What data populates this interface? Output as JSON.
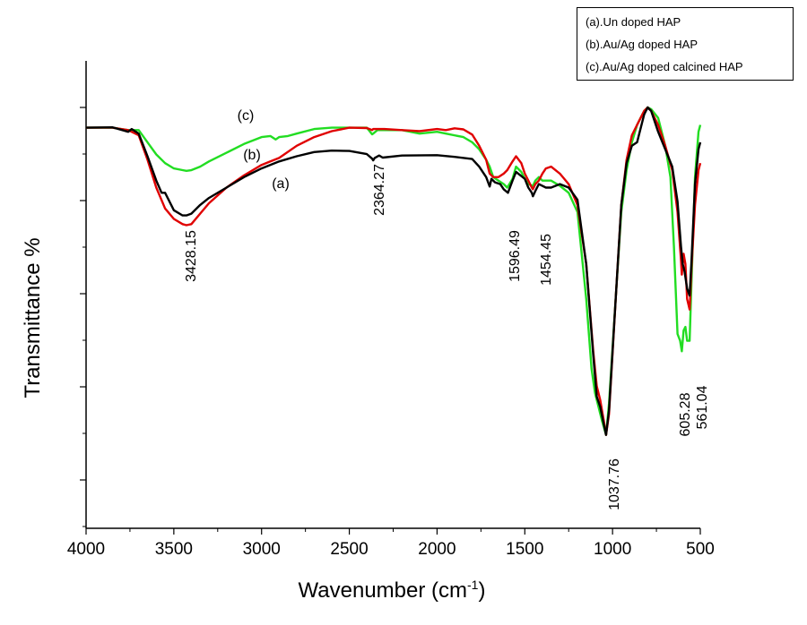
{
  "chart_data": {
    "type": "line",
    "xlabel": "Wavenumber (cm",
    "xlabel_sup": "-1",
    "xlabel_suffix": ")",
    "ylabel": "Transmittance %",
    "xlim": [
      4000,
      500
    ],
    "x_reversed": true,
    "ylim": [
      0,
      1
    ],
    "x_ticks": [
      4000,
      3500,
      3000,
      2500,
      2000,
      1500,
      1000,
      500
    ],
    "x_tick_labels": [
      "4000",
      "3500",
      "3000",
      "2500",
      "2000",
      "1500",
      "1000",
      "500"
    ],
    "y_tick_labels_shown": false,
    "grid": false,
    "legend_placement": "top-right",
    "legend": [
      "(a).Un doped HAP",
      "(b).Au/Ag doped HAP",
      "(c).Au/Ag doped calcined HAP"
    ],
    "series": [
      {
        "name": "(a)",
        "color": "#000000",
        "points": [
          [
            4000,
            0.942
          ],
          [
            3850,
            0.943
          ],
          [
            3760,
            0.93
          ],
          [
            3740,
            0.938
          ],
          [
            3700,
            0.925
          ],
          [
            3650,
            0.86
          ],
          [
            3600,
            0.79
          ],
          [
            3570,
            0.755
          ],
          [
            3550,
            0.755
          ],
          [
            3500,
            0.705
          ],
          [
            3450,
            0.69
          ],
          [
            3428,
            0.69
          ],
          [
            3400,
            0.695
          ],
          [
            3350,
            0.72
          ],
          [
            3300,
            0.74
          ],
          [
            3200,
            0.77
          ],
          [
            3100,
            0.8
          ],
          [
            3000,
            0.825
          ],
          [
            2900,
            0.845
          ],
          [
            2800,
            0.86
          ],
          [
            2700,
            0.872
          ],
          [
            2600,
            0.876
          ],
          [
            2500,
            0.875
          ],
          [
            2400,
            0.866
          ],
          [
            2370,
            0.853
          ],
          [
            2364,
            0.848
          ],
          [
            2355,
            0.855
          ],
          [
            2330,
            0.862
          ],
          [
            2310,
            0.856
          ],
          [
            2200,
            0.862
          ],
          [
            2000,
            0.863
          ],
          [
            1900,
            0.858
          ],
          [
            1800,
            0.852
          ],
          [
            1760,
            0.83
          ],
          [
            1720,
            0.8
          ],
          [
            1700,
            0.773
          ],
          [
            1690,
            0.795
          ],
          [
            1670,
            0.785
          ],
          [
            1640,
            0.78
          ],
          [
            1620,
            0.765
          ],
          [
            1596,
            0.755
          ],
          [
            1570,
            0.79
          ],
          [
            1550,
            0.815
          ],
          [
            1500,
            0.795
          ],
          [
            1480,
            0.77
          ],
          [
            1460,
            0.755
          ],
          [
            1454,
            0.745
          ],
          [
            1440,
            0.76
          ],
          [
            1420,
            0.78
          ],
          [
            1380,
            0.77
          ],
          [
            1350,
            0.77
          ],
          [
            1300,
            0.78
          ],
          [
            1250,
            0.77
          ],
          [
            1200,
            0.735
          ],
          [
            1150,
            0.55
          ],
          [
            1110,
            0.29
          ],
          [
            1090,
            0.17
          ],
          [
            1070,
            0.14
          ],
          [
            1050,
            0.09
          ],
          [
            1037,
            0.06
          ],
          [
            1020,
            0.13
          ],
          [
            980,
            0.47
          ],
          [
            950,
            0.72
          ],
          [
            920,
            0.84
          ],
          [
            890,
            0.89
          ],
          [
            860,
            0.9
          ],
          [
            820,
            0.98
          ],
          [
            800,
            1.0
          ],
          [
            780,
            0.99
          ],
          [
            740,
            0.93
          ],
          [
            700,
            0.88
          ],
          [
            660,
            0.83
          ],
          [
            630,
            0.73
          ],
          [
            610,
            0.6
          ],
          [
            600,
            0.55
          ],
          [
            590,
            0.53
          ],
          [
            575,
            0.48
          ],
          [
            561,
            0.46
          ],
          [
            550,
            0.56
          ],
          [
            530,
            0.78
          ],
          [
            510,
            0.88
          ],
          [
            500,
            0.9
          ]
        ]
      },
      {
        "name": "(b)",
        "color": "#e00000",
        "points": [
          [
            4000,
            0.942
          ],
          [
            3850,
            0.942
          ],
          [
            3760,
            0.935
          ],
          [
            3700,
            0.92
          ],
          [
            3650,
            0.85
          ],
          [
            3600,
            0.77
          ],
          [
            3550,
            0.71
          ],
          [
            3500,
            0.68
          ],
          [
            3450,
            0.665
          ],
          [
            3428,
            0.662
          ],
          [
            3400,
            0.665
          ],
          [
            3350,
            0.695
          ],
          [
            3300,
            0.725
          ],
          [
            3200,
            0.77
          ],
          [
            3100,
            0.805
          ],
          [
            3000,
            0.835
          ],
          [
            2950,
            0.845
          ],
          [
            2900,
            0.855
          ],
          [
            2800,
            0.89
          ],
          [
            2700,
            0.915
          ],
          [
            2600,
            0.932
          ],
          [
            2500,
            0.942
          ],
          [
            2400,
            0.941
          ],
          [
            2370,
            0.935
          ],
          [
            2364,
            0.938
          ],
          [
            2300,
            0.938
          ],
          [
            2200,
            0.935
          ],
          [
            2100,
            0.932
          ],
          [
            2000,
            0.938
          ],
          [
            1950,
            0.935
          ],
          [
            1900,
            0.94
          ],
          [
            1850,
            0.937
          ],
          [
            1800,
            0.922
          ],
          [
            1760,
            0.89
          ],
          [
            1720,
            0.85
          ],
          [
            1700,
            0.81
          ],
          [
            1680,
            0.8
          ],
          [
            1650,
            0.8
          ],
          [
            1620,
            0.81
          ],
          [
            1600,
            0.82
          ],
          [
            1570,
            0.845
          ],
          [
            1550,
            0.86
          ],
          [
            1520,
            0.84
          ],
          [
            1500,
            0.81
          ],
          [
            1480,
            0.79
          ],
          [
            1460,
            0.77
          ],
          [
            1454,
            0.765
          ],
          [
            1440,
            0.78
          ],
          [
            1420,
            0.79
          ],
          [
            1400,
            0.81
          ],
          [
            1380,
            0.825
          ],
          [
            1350,
            0.83
          ],
          [
            1300,
            0.81
          ],
          [
            1250,
            0.78
          ],
          [
            1200,
            0.72
          ],
          [
            1150,
            0.55
          ],
          [
            1110,
            0.3
          ],
          [
            1090,
            0.2
          ],
          [
            1070,
            0.16
          ],
          [
            1050,
            0.1
          ],
          [
            1037,
            0.06
          ],
          [
            1020,
            0.12
          ],
          [
            980,
            0.47
          ],
          [
            950,
            0.72
          ],
          [
            920,
            0.85
          ],
          [
            890,
            0.92
          ],
          [
            860,
            0.95
          ],
          [
            820,
            0.99
          ],
          [
            800,
            1.0
          ],
          [
            780,
            0.99
          ],
          [
            740,
            0.95
          ],
          [
            700,
            0.89
          ],
          [
            660,
            0.82
          ],
          [
            630,
            0.7
          ],
          [
            610,
            0.56
          ],
          [
            605,
            0.52
          ],
          [
            595,
            0.58
          ],
          [
            585,
            0.55
          ],
          [
            575,
            0.45
          ],
          [
            561,
            0.42
          ],
          [
            550,
            0.54
          ],
          [
            530,
            0.72
          ],
          [
            510,
            0.82
          ],
          [
            500,
            0.84
          ]
        ]
      },
      {
        "name": "(c)",
        "color": "#22dd22",
        "points": [
          [
            4000,
            0.942
          ],
          [
            3850,
            0.942
          ],
          [
            3760,
            0.935
          ],
          [
            3700,
            0.935
          ],
          [
            3650,
            0.9
          ],
          [
            3600,
            0.865
          ],
          [
            3550,
            0.84
          ],
          [
            3500,
            0.825
          ],
          [
            3450,
            0.82
          ],
          [
            3428,
            0.818
          ],
          [
            3400,
            0.82
          ],
          [
            3350,
            0.83
          ],
          [
            3300,
            0.845
          ],
          [
            3200,
            0.87
          ],
          [
            3100,
            0.895
          ],
          [
            3000,
            0.915
          ],
          [
            2950,
            0.918
          ],
          [
            2920,
            0.908
          ],
          [
            2900,
            0.915
          ],
          [
            2850,
            0.918
          ],
          [
            2800,
            0.925
          ],
          [
            2700,
            0.938
          ],
          [
            2600,
            0.942
          ],
          [
            2500,
            0.942
          ],
          [
            2400,
            0.942
          ],
          [
            2370,
            0.923
          ],
          [
            2364,
            0.925
          ],
          [
            2340,
            0.935
          ],
          [
            2300,
            0.935
          ],
          [
            2200,
            0.935
          ],
          [
            2100,
            0.925
          ],
          [
            2000,
            0.93
          ],
          [
            1950,
            0.925
          ],
          [
            1850,
            0.915
          ],
          [
            1800,
            0.9
          ],
          [
            1760,
            0.88
          ],
          [
            1720,
            0.85
          ],
          [
            1700,
            0.83
          ],
          [
            1680,
            0.8
          ],
          [
            1650,
            0.79
          ],
          [
            1620,
            0.78
          ],
          [
            1600,
            0.77
          ],
          [
            1570,
            0.795
          ],
          [
            1550,
            0.83
          ],
          [
            1520,
            0.815
          ],
          [
            1500,
            0.795
          ],
          [
            1480,
            0.78
          ],
          [
            1454,
            0.775
          ],
          [
            1440,
            0.79
          ],
          [
            1420,
            0.8
          ],
          [
            1400,
            0.79
          ],
          [
            1380,
            0.79
          ],
          [
            1350,
            0.79
          ],
          [
            1300,
            0.775
          ],
          [
            1250,
            0.755
          ],
          [
            1200,
            0.7
          ],
          [
            1150,
            0.45
          ],
          [
            1120,
            0.25
          ],
          [
            1100,
            0.18
          ],
          [
            1080,
            0.14
          ],
          [
            1060,
            0.1
          ],
          [
            1037,
            0.06
          ],
          [
            1020,
            0.15
          ],
          [
            980,
            0.47
          ],
          [
            950,
            0.7
          ],
          [
            920,
            0.82
          ],
          [
            890,
            0.9
          ],
          [
            860,
            0.95
          ],
          [
            820,
            0.99
          ],
          [
            800,
            1.0
          ],
          [
            780,
            0.995
          ],
          [
            740,
            0.97
          ],
          [
            700,
            0.89
          ],
          [
            670,
            0.8
          ],
          [
            650,
            0.6
          ],
          [
            630,
            0.35
          ],
          [
            615,
            0.33
          ],
          [
            605,
            0.3
          ],
          [
            595,
            0.36
          ],
          [
            585,
            0.37
          ],
          [
            575,
            0.33
          ],
          [
            561,
            0.33
          ],
          [
            550,
            0.5
          ],
          [
            530,
            0.8
          ],
          [
            510,
            0.93
          ],
          [
            500,
            0.95
          ]
        ]
      }
    ],
    "annotations": [
      {
        "text": "3428.15",
        "x": 3428,
        "rotated": true
      },
      {
        "text": "2364.27",
        "x": 2364,
        "rotated": true
      },
      {
        "text": "1596.49",
        "x": 1596,
        "rotated": true
      },
      {
        "text": "1454.45",
        "x": 1454,
        "rotated": true
      },
      {
        "text": "1037.76",
        "x": 1037,
        "rotated": true
      },
      {
        "text": "605.28",
        "x": 605,
        "rotated": true
      },
      {
        "text": "561.04",
        "x": 561,
        "rotated": true
      },
      {
        "text": "(a)",
        "x": 2900,
        "rotated": false
      },
      {
        "text": "(b)",
        "x": 3050,
        "rotated": false
      },
      {
        "text": "(c)",
        "x": 3050,
        "rotated": false
      }
    ]
  }
}
